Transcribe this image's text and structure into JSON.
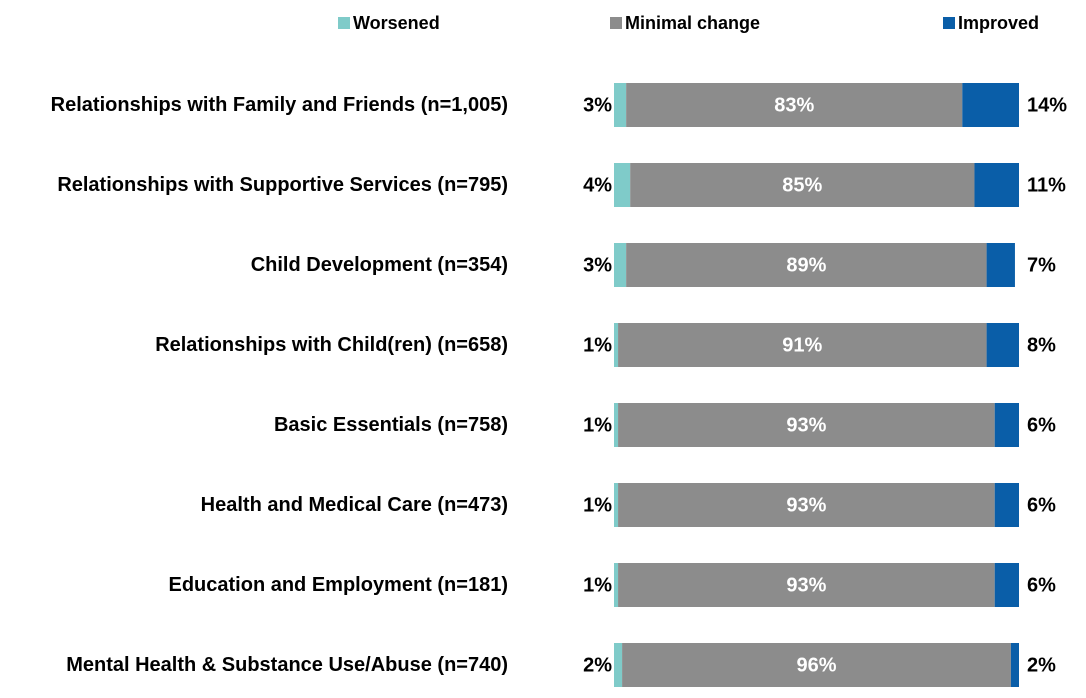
{
  "chart_data": {
    "type": "stacked-bar-horizontal",
    "categories": [
      "Relationships with Family and Friends (n=1,005)",
      "Relationships with Supportive Services (n=795)",
      "Child Development (n=354)",
      "Relationships with Child(ren) (n=658)",
      "Basic Essentials (n=758)",
      "Health and Medical Care (n=473)",
      "Education and Employment (n=181)",
      "Mental Health & Substance Use/Abuse (n=740)"
    ],
    "series": [
      {
        "name": "Worsened",
        "color": "#7fcbc9",
        "values": [
          3,
          4,
          3,
          1,
          1,
          1,
          1,
          2
        ],
        "value_labels": [
          "3%",
          "4%",
          "3%",
          "1%",
          "1%",
          "1%",
          "1%",
          "2%"
        ]
      },
      {
        "name": "Minimal change",
        "color": "#8c8c8c",
        "values": [
          83,
          85,
          89,
          91,
          93,
          93,
          93,
          96
        ],
        "value_labels": [
          "83%",
          "85%",
          "89%",
          "91%",
          "93%",
          "93%",
          "93%",
          "96%"
        ]
      },
      {
        "name": "Improved",
        "color": "#0a5ea8",
        "values": [
          14,
          11,
          7,
          8,
          6,
          6,
          6,
          2
        ],
        "value_labels": [
          "14%",
          "11%",
          "7%",
          "8%",
          "6%",
          "6%",
          "6%",
          "2%"
        ]
      }
    ],
    "xlim": [
      0,
      100
    ],
    "legend": "top"
  }
}
